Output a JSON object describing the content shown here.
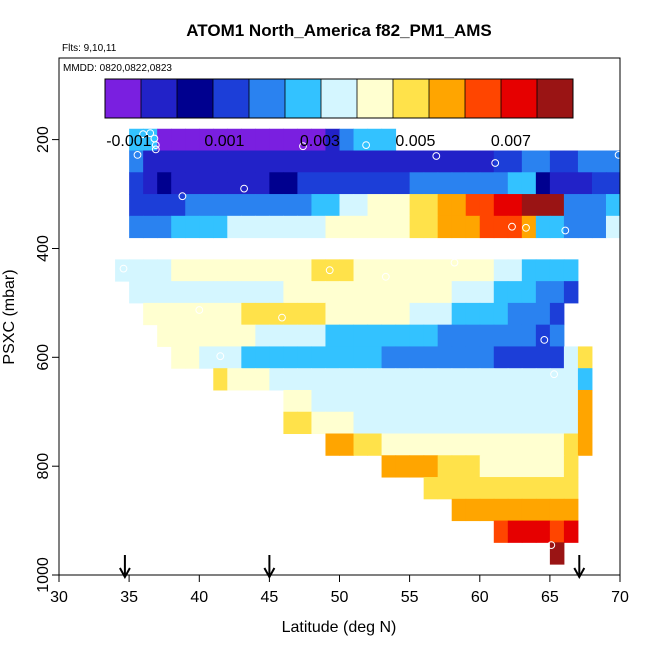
{
  "chart_data": {
    "type": "heatmap",
    "title": "ATOM1 North_America f82_PM1_AMS",
    "flights_note": "Flts: 9,10,11",
    "dates_note": "MMDD: 0820,0822,0823",
    "xlabel": "Latitude (deg N)",
    "ylabel": "PSXC (mbar)",
    "xlim": [
      30,
      70
    ],
    "ylim": [
      1000,
      50
    ],
    "x_ticks": [
      30,
      35,
      40,
      45,
      50,
      55,
      60,
      65,
      70
    ],
    "y_ticks": [
      200,
      400,
      600,
      800,
      1000
    ],
    "colorbar": {
      "min": -0.0015,
      "max": 0.0083,
      "tick_values": [
        -0.001,
        0.001,
        0.003,
        0.005,
        0.007
      ],
      "tick_labels": [
        "-0.001",
        "0.001",
        "0.003",
        "0.005",
        "0.007"
      ],
      "colors": [
        "#7a1fe0",
        "#2222c8",
        "#00008f",
        "#1c3ed8",
        "#2a82f0",
        "#33c2ff",
        "#d4f6ff",
        "#ffffd0",
        "#ffe24a",
        "#ffa500",
        "#ff4500",
        "#e60000",
        "#9a1414"
      ]
    },
    "arrows_latitude": [
      34.7,
      45,
      67.1
    ],
    "bin_width_deg": 1,
    "bin_height_mbar": 40,
    "rows": [
      {
        "p": 200,
        "x0": 35,
        "v": [
          0.0028,
          0.003,
          -0.0013,
          -0.0013,
          -0.0013,
          -0.0012,
          -0.0012,
          -0.0012,
          -0.0012,
          -0.001,
          -0.001,
          -0.001,
          -0.001,
          -0.001,
          -0.0002,
          0.0018,
          0.0028,
          0.0029,
          0.003
        ]
      },
      {
        "p": 240,
        "x0": 35,
        "v": [
          0.002,
          -0.0005,
          -0.0005,
          -0.0005,
          -0.0004,
          -0.0004,
          -0.0004,
          -0.0004,
          -0.0003,
          -0.0003,
          -0.0003,
          -0.0003,
          -0.0003,
          -0.0003,
          -0.0002,
          -0.0001,
          -0.0004,
          -0.0004,
          -0.0005,
          -0.0005,
          -0.0003,
          -0.0002,
          -0.0002,
          -0.0003,
          -0.0003,
          0.0,
          0.0008,
          0.0012,
          0.0016,
          0.0018,
          0.0012,
          0.0015,
          0.0018,
          0.002,
          0.0022
        ]
      },
      {
        "p": 280,
        "x0": 35,
        "v": [
          0.0015,
          0.0,
          0.0003,
          0.0,
          -0.0002,
          -0.0002,
          -0.0002,
          -0.0002,
          0.0,
          0.0,
          0.0002,
          0.0005,
          0.0008,
          0.001,
          0.0011,
          0.0011,
          0.0011,
          0.0012,
          0.0014,
          0.0014,
          0.0016,
          0.0017,
          0.0018,
          0.0019,
          0.002,
          0.002,
          0.0022,
          0.0024,
          0.0025,
          0.0002,
          0.0,
          0.0,
          0.0,
          0.0012,
          0.0015
        ]
      },
      {
        "p": 320,
        "x0": 35,
        "v": [
          0.0013,
          0.0014,
          0.0014,
          0.0015,
          0.0016,
          0.0016,
          0.0016,
          0.0016,
          0.0016,
          0.0016,
          0.0017,
          0.002,
          0.0022,
          0.0025,
          0.003,
          0.0034,
          0.0036,
          0.0038,
          0.004,
          0.0042,
          0.0046,
          0.005,
          0.0054,
          0.0058,
          0.0062,
          0.0065,
          0.007,
          0.0075,
          0.0077,
          0.0079,
          0.0078,
          0.0016,
          0.0018,
          0.002,
          0.0024
        ]
      },
      {
        "p": 360,
        "x0": 35,
        "v": [
          0.0018,
          0.002,
          0.0022,
          0.0024,
          0.0026,
          0.0028,
          0.003,
          0.0031,
          0.0032,
          0.0033,
          0.0034,
          0.0035,
          0.0036,
          0.0037,
          0.0038,
          0.004,
          0.0041,
          0.0042,
          0.0043,
          0.0045,
          0.0047,
          0.005,
          0.0053,
          0.0056,
          0.006,
          0.0064,
          0.0065,
          0.0063,
          0.0058,
          0.0026,
          0.0024,
          0.0022,
          0.002,
          0.0021,
          0.0032
        ]
      },
      {
        "p": 440,
        "x0": 34,
        "v": [
          0.0033,
          0.0034,
          0.0036,
          0.0037,
          0.0038,
          0.0039,
          0.004,
          0.0041,
          0.0042,
          0.0043,
          0.0043,
          0.0044,
          0.0045,
          0.0045,
          0.0046,
          0.0046,
          0.0046,
          0.0045,
          0.0045,
          0.0044,
          0.0043,
          0.0042,
          0.0041,
          0.004,
          0.0039,
          0.0039,
          0.0038,
          0.0036,
          0.0034,
          0.003,
          0.0028,
          0.0027,
          0.0025
        ]
      },
      {
        "p": 480,
        "x0": 35,
        "v": [
          0.0035,
          0.0035,
          0.0035,
          0.0036,
          0.0036,
          0.0036,
          0.0036,
          0.0037,
          0.0037,
          0.0037,
          0.0037,
          0.0038,
          0.0038,
          0.0039,
          0.0039,
          0.0039,
          0.004,
          0.004,
          0.004,
          0.0041,
          0.004,
          0.0039,
          0.0038,
          0.0037,
          0.0036,
          0.0034,
          0.003,
          0.0027,
          0.0025,
          0.002,
          0.0018,
          0.0015
        ]
      },
      {
        "p": 520,
        "x0": 36,
        "v": [
          0.0041,
          0.0042,
          0.0043,
          0.0043,
          0.0044,
          0.0044,
          0.0045,
          0.0046,
          0.0048,
          0.0049,
          0.005,
          0.0049,
          0.0046,
          0.0044,
          0.0042,
          0.0041,
          0.004,
          0.0039,
          0.0038,
          0.0036,
          0.0034,
          0.0032,
          0.003,
          0.0028,
          0.0026,
          0.0024,
          0.0022,
          0.002,
          0.0016,
          0.0014
        ]
      },
      {
        "p": 560,
        "x0": 37,
        "v": [
          0.0043,
          0.0043,
          0.0042,
          0.0041,
          0.004,
          0.0039,
          0.0038,
          0.0036,
          0.0035,
          0.0034,
          0.0033,
          0.0031,
          0.003,
          0.0029,
          0.0028,
          0.0027,
          0.0026,
          0.0025,
          0.0024,
          0.0023,
          0.0022,
          0.0021,
          0.002,
          0.0019,
          0.0018,
          0.0017,
          0.0016,
          0.0015,
          0.0022
        ]
      },
      {
        "p": 600,
        "x0": 38,
        "v": [
          0.004,
          0.0038,
          0.0035,
          0.0032,
          0.0031,
          0.003,
          0.0029,
          0.0029,
          0.0028,
          0.0027,
          0.0026,
          0.0025,
          0.0024,
          0.0023,
          0.0023,
          0.0022,
          0.0021,
          0.002,
          0.0019,
          0.0018,
          0.0017,
          0.0016,
          0.0016,
          0.0015,
          0.0015,
          0.0015,
          0.0015,
          0.0015,
          0.0031,
          0.0047
        ]
      },
      {
        "p": 640,
        "x0": 41,
        "v": [
          0.0046,
          0.0044,
          0.004,
          0.0038,
          0.0036,
          0.0035,
          0.0034,
          0.0033,
          0.0033,
          0.0032,
          0.0032,
          0.0031,
          0.0031,
          0.0031,
          0.0031,
          0.0031,
          0.0031,
          0.0031,
          0.0031,
          0.0031,
          0.0032,
          0.0032,
          0.0032,
          0.0032,
          0.0033,
          0.0033,
          0.003
        ]
      },
      {
        "p": 680,
        "x0": 46,
        "v": [
          0.004,
          0.0038,
          0.0036,
          0.0035,
          0.0034,
          0.0034,
          0.0034,
          0.0034,
          0.0034,
          0.0034,
          0.0034,
          0.0034,
          0.0034,
          0.0033,
          0.0033,
          0.0033,
          0.0033,
          0.0033,
          0.0033,
          0.0034,
          0.0035,
          0.006
        ]
      },
      {
        "p": 720,
        "x0": 46,
        "v": [
          0.0048,
          0.0046,
          0.0043,
          0.004,
          0.0038,
          0.0037,
          0.0036,
          0.0035,
          0.0035,
          0.0034,
          0.0034,
          0.0034,
          0.0034,
          0.0034,
          0.0034,
          0.0035,
          0.0035,
          0.0035,
          0.0036,
          0.0036,
          0.0037,
          0.0058
        ]
      },
      {
        "p": 760,
        "x0": 49,
        "v": [
          0.0055,
          0.0054,
          0.0052,
          0.0048,
          0.0045,
          0.0042,
          0.004,
          0.0039,
          0.0038,
          0.0038,
          0.0038,
          0.0039,
          0.004,
          0.0042,
          0.0043,
          0.0044,
          0.0045,
          0.0046,
          0.0058
        ]
      },
      {
        "p": 800,
        "x0": 53,
        "v": [
          0.0057,
          0.0058,
          0.0056,
          0.0053,
          0.005,
          0.0048,
          0.0046,
          0.0044,
          0.0042,
          0.0041,
          0.0042,
          0.0043,
          0.0044,
          0.0046
        ]
      },
      {
        "p": 840,
        "x0": 56,
        "v": [
          0.005,
          0.0049,
          0.0047,
          0.0046,
          0.0046,
          0.0047,
          0.0048,
          0.0049,
          0.005,
          0.005,
          0.0051
        ]
      },
      {
        "p": 880,
        "x0": 58,
        "v": [
          0.0055,
          0.0054,
          0.0053,
          0.0053,
          0.0054,
          0.0055,
          0.0056,
          0.0058,
          0.0059
        ]
      },
      {
        "p": 920,
        "x0": 61,
        "v": [
          0.0062,
          0.0068,
          0.007,
          0.0068,
          0.0067,
          0.0074
        ]
      },
      {
        "p": 960,
        "x0": 65,
        "v": [
          0.008
        ]
      }
    ],
    "points": [
      [
        35.6,
        228
      ],
      [
        36.0,
        190
      ],
      [
        36.5,
        188
      ],
      [
        36.8,
        198
      ],
      [
        36.9,
        210
      ],
      [
        36.9,
        218
      ],
      [
        38.8,
        304
      ],
      [
        43.2,
        290
      ],
      [
        47.4,
        212
      ],
      [
        51.9,
        210
      ],
      [
        56.9,
        230
      ],
      [
        61.1,
        243
      ],
      [
        62.3,
        360
      ],
      [
        63.3,
        362
      ],
      [
        66.1,
        367
      ],
      [
        69.9,
        228
      ],
      [
        34.6,
        437
      ],
      [
        49.3,
        440
      ],
      [
        53.3,
        452
      ],
      [
        58.2,
        426
      ],
      [
        40.0,
        513
      ],
      [
        45.9,
        527
      ],
      [
        64.6,
        568
      ],
      [
        41.5,
        598
      ],
      [
        65.3,
        631
      ],
      [
        65.1,
        945
      ]
    ]
  }
}
